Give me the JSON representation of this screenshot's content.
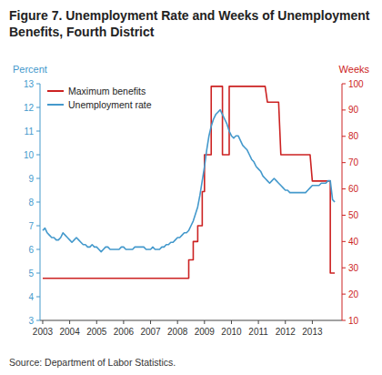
{
  "chart_data": {
    "type": "line",
    "title": "Figure 7. Unemployment Rate and Weeks of Unemployment Benefits, Fourth District",
    "source": "Source: Department of Labor Statistics.",
    "ylabel": "Percent",
    "y2label": "Weeks",
    "xlim": [
      2002.9,
      2014.1
    ],
    "xticks": [
      2003,
      2004,
      2005,
      2006,
      2007,
      2008,
      2009,
      2010,
      2011,
      2012,
      2013
    ],
    "ylim": [
      3,
      13
    ],
    "yticks": [
      3,
      4,
      5,
      6,
      7,
      8,
      9,
      10,
      11,
      12,
      13
    ],
    "y2lim": [
      10,
      100
    ],
    "y2ticks": [
      10,
      20,
      30,
      40,
      50,
      60,
      70,
      80,
      90,
      100
    ],
    "grid": false,
    "legend": "upper left",
    "series": [
      {
        "name": "Maximum benefits",
        "color": "#CC2222",
        "axis": "y2",
        "x": [
          2003.0,
          2008.416,
          2008.416,
          2008.583,
          2008.583,
          2008.75,
          2008.75,
          2008.917,
          2008.917,
          2009.0,
          2009.0,
          2009.083,
          2009.25,
          2009.25,
          2009.333,
          2009.5,
          2009.583,
          2009.667,
          2009.667,
          2009.75,
          2009.917,
          2009.917,
          2010.0,
          2010.25,
          2010.333,
          2010.667,
          2010.75,
          2010.833,
          2010.917,
          2011.0,
          2011.083,
          2011.25,
          2011.333,
          2011.417,
          2011.583,
          2011.75,
          2011.833,
          2011.917,
          2012.0,
          2012.917,
          2013.0,
          2013.667,
          2013.667,
          2013.833
        ],
        "values": [
          26,
          26,
          33,
          33,
          40,
          40,
          46,
          46,
          59,
          59,
          73,
          73,
          73,
          99,
          99,
          99,
          99,
          99,
          73,
          73,
          73,
          99,
          99,
          99,
          99,
          99,
          99,
          99,
          99,
          99,
          99,
          99,
          93,
          93,
          93,
          93,
          73,
          73,
          73,
          73,
          63,
          63,
          28,
          28
        ]
      },
      {
        "name": "Unemployment rate",
        "color": "#4499CC",
        "x": [
          2003.0,
          2003.083,
          2003.167,
          2003.25,
          2003.333,
          2003.417,
          2003.5,
          2003.583,
          2003.667,
          2003.75,
          2003.833,
          2003.917,
          2004.0,
          2004.083,
          2004.167,
          2004.25,
          2004.333,
          2004.417,
          2004.5,
          2004.583,
          2004.667,
          2004.75,
          2004.833,
          2004.917,
          2005.0,
          2005.083,
          2005.167,
          2005.25,
          2005.333,
          2005.417,
          2005.5,
          2005.583,
          2005.667,
          2005.75,
          2005.833,
          2005.917,
          2006.0,
          2006.083,
          2006.167,
          2006.25,
          2006.333,
          2006.417,
          2006.5,
          2006.583,
          2006.667,
          2006.75,
          2006.833,
          2006.917,
          2007.0,
          2007.083,
          2007.167,
          2007.25,
          2007.333,
          2007.417,
          2007.5,
          2007.583,
          2007.667,
          2007.75,
          2007.833,
          2007.917,
          2008.0,
          2008.083,
          2008.167,
          2008.25,
          2008.333,
          2008.417,
          2008.5,
          2008.583,
          2008.667,
          2008.75,
          2008.833,
          2008.917,
          2009.0,
          2009.083,
          2009.167,
          2009.25,
          2009.333,
          2009.417,
          2009.5,
          2009.583,
          2009.667,
          2009.75,
          2009.833,
          2009.917,
          2010.0,
          2010.083,
          2010.167,
          2010.25,
          2010.333,
          2010.417,
          2010.5,
          2010.583,
          2010.667,
          2010.75,
          2010.833,
          2010.917,
          2011.0,
          2011.083,
          2011.167,
          2011.25,
          2011.333,
          2011.417,
          2011.5,
          2011.583,
          2011.667,
          2011.75,
          2011.833,
          2011.917,
          2012.0,
          2012.083,
          2012.167,
          2012.25,
          2012.333,
          2012.417,
          2012.5,
          2012.583,
          2012.667,
          2012.75,
          2012.833,
          2012.917,
          2013.0,
          2013.083,
          2013.167,
          2013.25,
          2013.333,
          2013.417,
          2013.5,
          2013.583,
          2013.667,
          2013.75,
          2013.833
        ],
        "values": [
          6.8,
          6.9,
          6.7,
          6.6,
          6.5,
          6.5,
          6.4,
          6.4,
          6.5,
          6.7,
          6.6,
          6.5,
          6.4,
          6.3,
          6.4,
          6.5,
          6.4,
          6.3,
          6.2,
          6.2,
          6.1,
          6.1,
          6.2,
          6.1,
          6.1,
          6.0,
          5.9,
          6.0,
          6.1,
          6.1,
          6.0,
          6.0,
          6.0,
          6.0,
          6.0,
          6.1,
          6.1,
          6.0,
          6.0,
          6.0,
          6.0,
          6.1,
          6.1,
          6.1,
          6.1,
          6.1,
          6.0,
          6.0,
          6.0,
          6.1,
          6.0,
          6.0,
          6.0,
          6.1,
          6.1,
          6.2,
          6.2,
          6.3,
          6.3,
          6.4,
          6.5,
          6.5,
          6.6,
          6.7,
          6.7,
          6.8,
          7.0,
          7.2,
          7.5,
          7.8,
          8.3,
          8.9,
          9.5,
          10.2,
          10.8,
          11.2,
          11.5,
          11.7,
          11.8,
          11.9,
          11.7,
          11.5,
          11.3,
          11.0,
          10.8,
          10.7,
          10.8,
          10.8,
          10.6,
          10.4,
          10.3,
          10.2,
          10.0,
          9.8,
          9.7,
          9.5,
          9.4,
          9.3,
          9.1,
          9.0,
          8.9,
          8.8,
          8.9,
          9.0,
          8.9,
          8.8,
          8.7,
          8.6,
          8.5,
          8.5,
          8.4,
          8.4,
          8.4,
          8.4,
          8.4,
          8.4,
          8.4,
          8.4,
          8.5,
          8.6,
          8.7,
          8.7,
          8.7,
          8.7,
          8.8,
          8.8,
          8.8,
          8.9,
          8.9,
          8.1,
          8.0
        ]
      }
    ]
  }
}
